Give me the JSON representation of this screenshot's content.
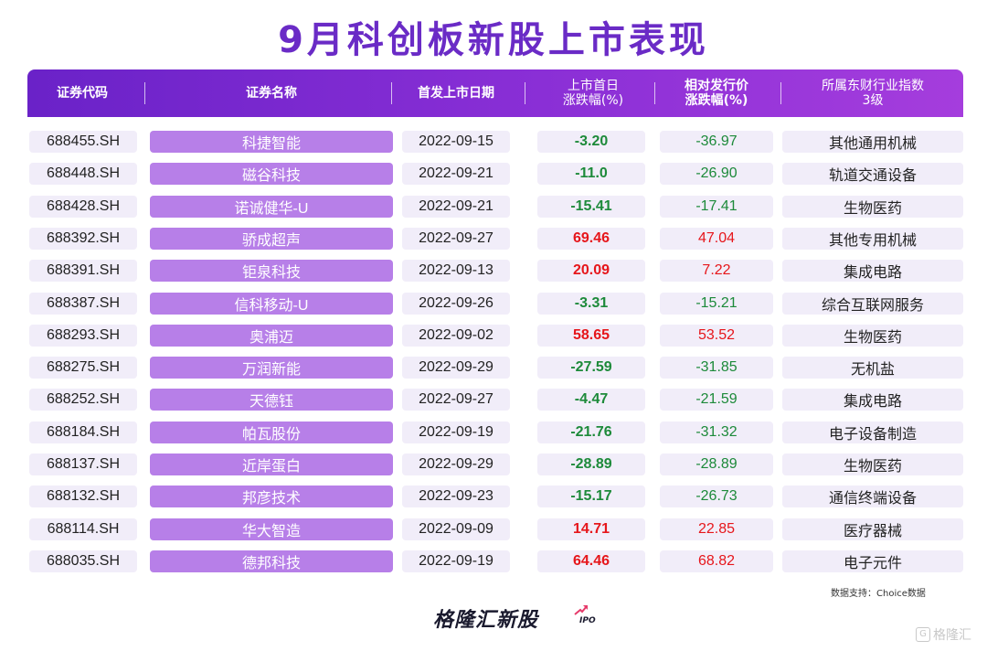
{
  "title": "9月科创板新股上市表现",
  "headers": {
    "code": "证券代码",
    "name": "证券名称",
    "date": "首发上市日期",
    "first_day": [
      "上市首日",
      "涨跌幅(%)"
    ],
    "relative": [
      "相对发行价",
      "涨跌幅(%)"
    ],
    "industry": [
      "所属东财行业指数",
      "3级"
    ]
  },
  "colors": {
    "accent": "#6a2bc6",
    "negative": "#1d8a3a",
    "positive": "#e6161b"
  },
  "rows": [
    {
      "code": "688455.SH",
      "name": "科捷智能",
      "date": "2022-09-15",
      "first_day": "-3.20",
      "relative": "-36.97",
      "industry": "其他通用机械"
    },
    {
      "code": "688448.SH",
      "name": "磁谷科技",
      "date": "2022-09-21",
      "first_day": "-11.0",
      "relative": "-26.90",
      "industry": "轨道交通设备"
    },
    {
      "code": "688428.SH",
      "name": "诺诚健华-U",
      "date": "2022-09-21",
      "first_day": "-15.41",
      "relative": "-17.41",
      "industry": "生物医药"
    },
    {
      "code": "688392.SH",
      "name": "骄成超声",
      "date": "2022-09-27",
      "first_day": "69.46",
      "relative": "47.04",
      "industry": "其他专用机械"
    },
    {
      "code": "688391.SH",
      "name": "钜泉科技",
      "date": "2022-09-13",
      "first_day": "20.09",
      "relative": "7.22",
      "industry": "集成电路"
    },
    {
      "code": "688387.SH",
      "name": "信科移动-U",
      "date": "2022-09-26",
      "first_day": "-3.31",
      "relative": "-15.21",
      "industry": "综合互联网服务"
    },
    {
      "code": "688293.SH",
      "name": "奥浦迈",
      "date": "2022-09-02",
      "first_day": "58.65",
      "relative": "53.52",
      "industry": "生物医药"
    },
    {
      "code": "688275.SH",
      "name": "万润新能",
      "date": "2022-09-29",
      "first_day": "-27.59",
      "relative": "-31.85",
      "industry": "无机盐"
    },
    {
      "code": "688252.SH",
      "name": "天德钰",
      "date": "2022-09-27",
      "first_day": "-4.47",
      "relative": "-21.59",
      "industry": "集成电路"
    },
    {
      "code": "688184.SH",
      "name": "帕瓦股份",
      "date": "2022-09-19",
      "first_day": "-21.76",
      "relative": "-31.32",
      "industry": "电子设备制造"
    },
    {
      "code": "688137.SH",
      "name": "近岸蛋白",
      "date": "2022-09-29",
      "first_day": "-28.89",
      "relative": "-28.89",
      "industry": "生物医药"
    },
    {
      "code": "688132.SH",
      "name": "邦彦技术",
      "date": "2022-09-23",
      "first_day": "-15.17",
      "relative": "-26.73",
      "industry": "通信终端设备"
    },
    {
      "code": "688114.SH",
      "name": "华大智造",
      "date": "2022-09-09",
      "first_day": "14.71",
      "relative": "22.85",
      "industry": "医疗器械"
    },
    {
      "code": "688035.SH",
      "name": "德邦科技",
      "date": "2022-09-19",
      "first_day": "64.46",
      "relative": "68.82",
      "industry": "电子元件"
    }
  ],
  "source": "数据支持：Choice数据",
  "brand": "格隆汇新股",
  "brand_sub": "IPO",
  "watermark": "格隆汇"
}
